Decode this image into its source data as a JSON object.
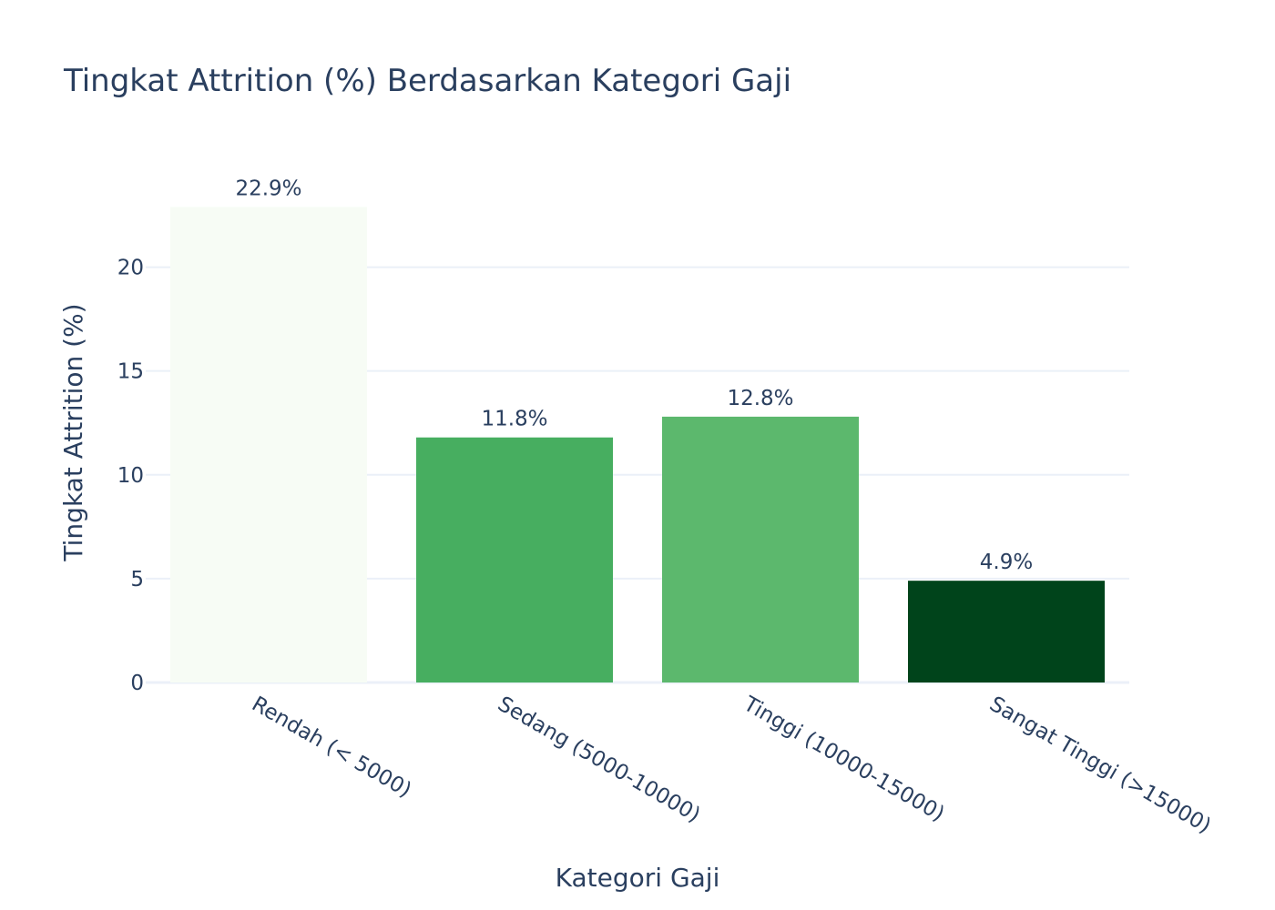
{
  "chart_data": {
    "type": "bar",
    "title": "Tingkat Attrition (%) Berdasarkan Kategori Gaji",
    "xlabel": "Kategori Gaji",
    "ylabel": "Tingkat Attrition (%)",
    "categories": [
      "Rendah (< 5000)",
      "Sedang (5000-10000)",
      "Tinggi (10000-15000)",
      "Sangat Tinggi (>15000)"
    ],
    "values": [
      22.9,
      11.8,
      12.8,
      4.9
    ],
    "data_labels": [
      "22.9%",
      "11.8%",
      "12.8%",
      "4.9%"
    ],
    "bar_colors": [
      "#f7fcf5",
      "#47ae60",
      "#5cb86d",
      "#00441b"
    ],
    "ylim": [
      0,
      24.1
    ],
    "yticks": [
      0,
      5,
      10,
      15,
      20
    ],
    "ytick_labels": [
      "0",
      "5",
      "10",
      "15",
      "20"
    ],
    "grid": true,
    "colors": {
      "text": "#2a3f5f",
      "grid": "#ebf0f8",
      "background": "#ffffff"
    }
  }
}
